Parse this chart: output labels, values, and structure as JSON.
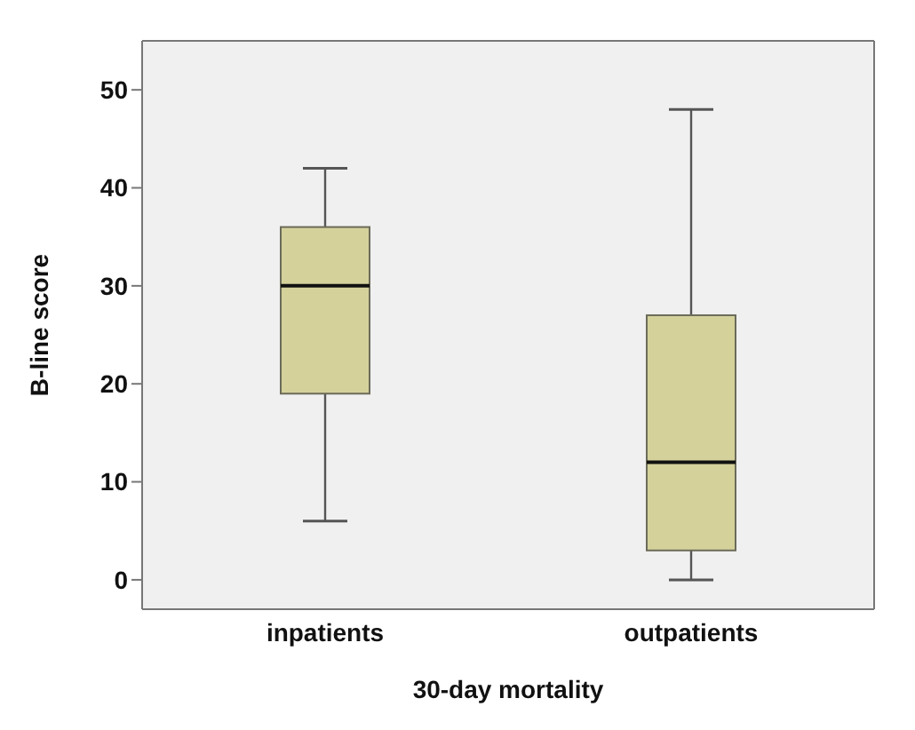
{
  "chart_data": {
    "type": "box",
    "xlabel": "30-day mortality",
    "ylabel": "B-line score",
    "categories": [
      "inpatients",
      "outpatients"
    ],
    "ylim": [
      -3,
      55
    ],
    "yticks": [
      0,
      10,
      20,
      30,
      40,
      50
    ],
    "series": [
      {
        "color": "#d4d19b",
        "boxes": [
          {
            "low": 6,
            "q1": 19,
            "median": 30,
            "q3": 36,
            "high": 42
          },
          {
            "low": 0,
            "q1": 3,
            "median": 12,
            "q3": 27,
            "high": 48
          }
        ]
      }
    ]
  }
}
